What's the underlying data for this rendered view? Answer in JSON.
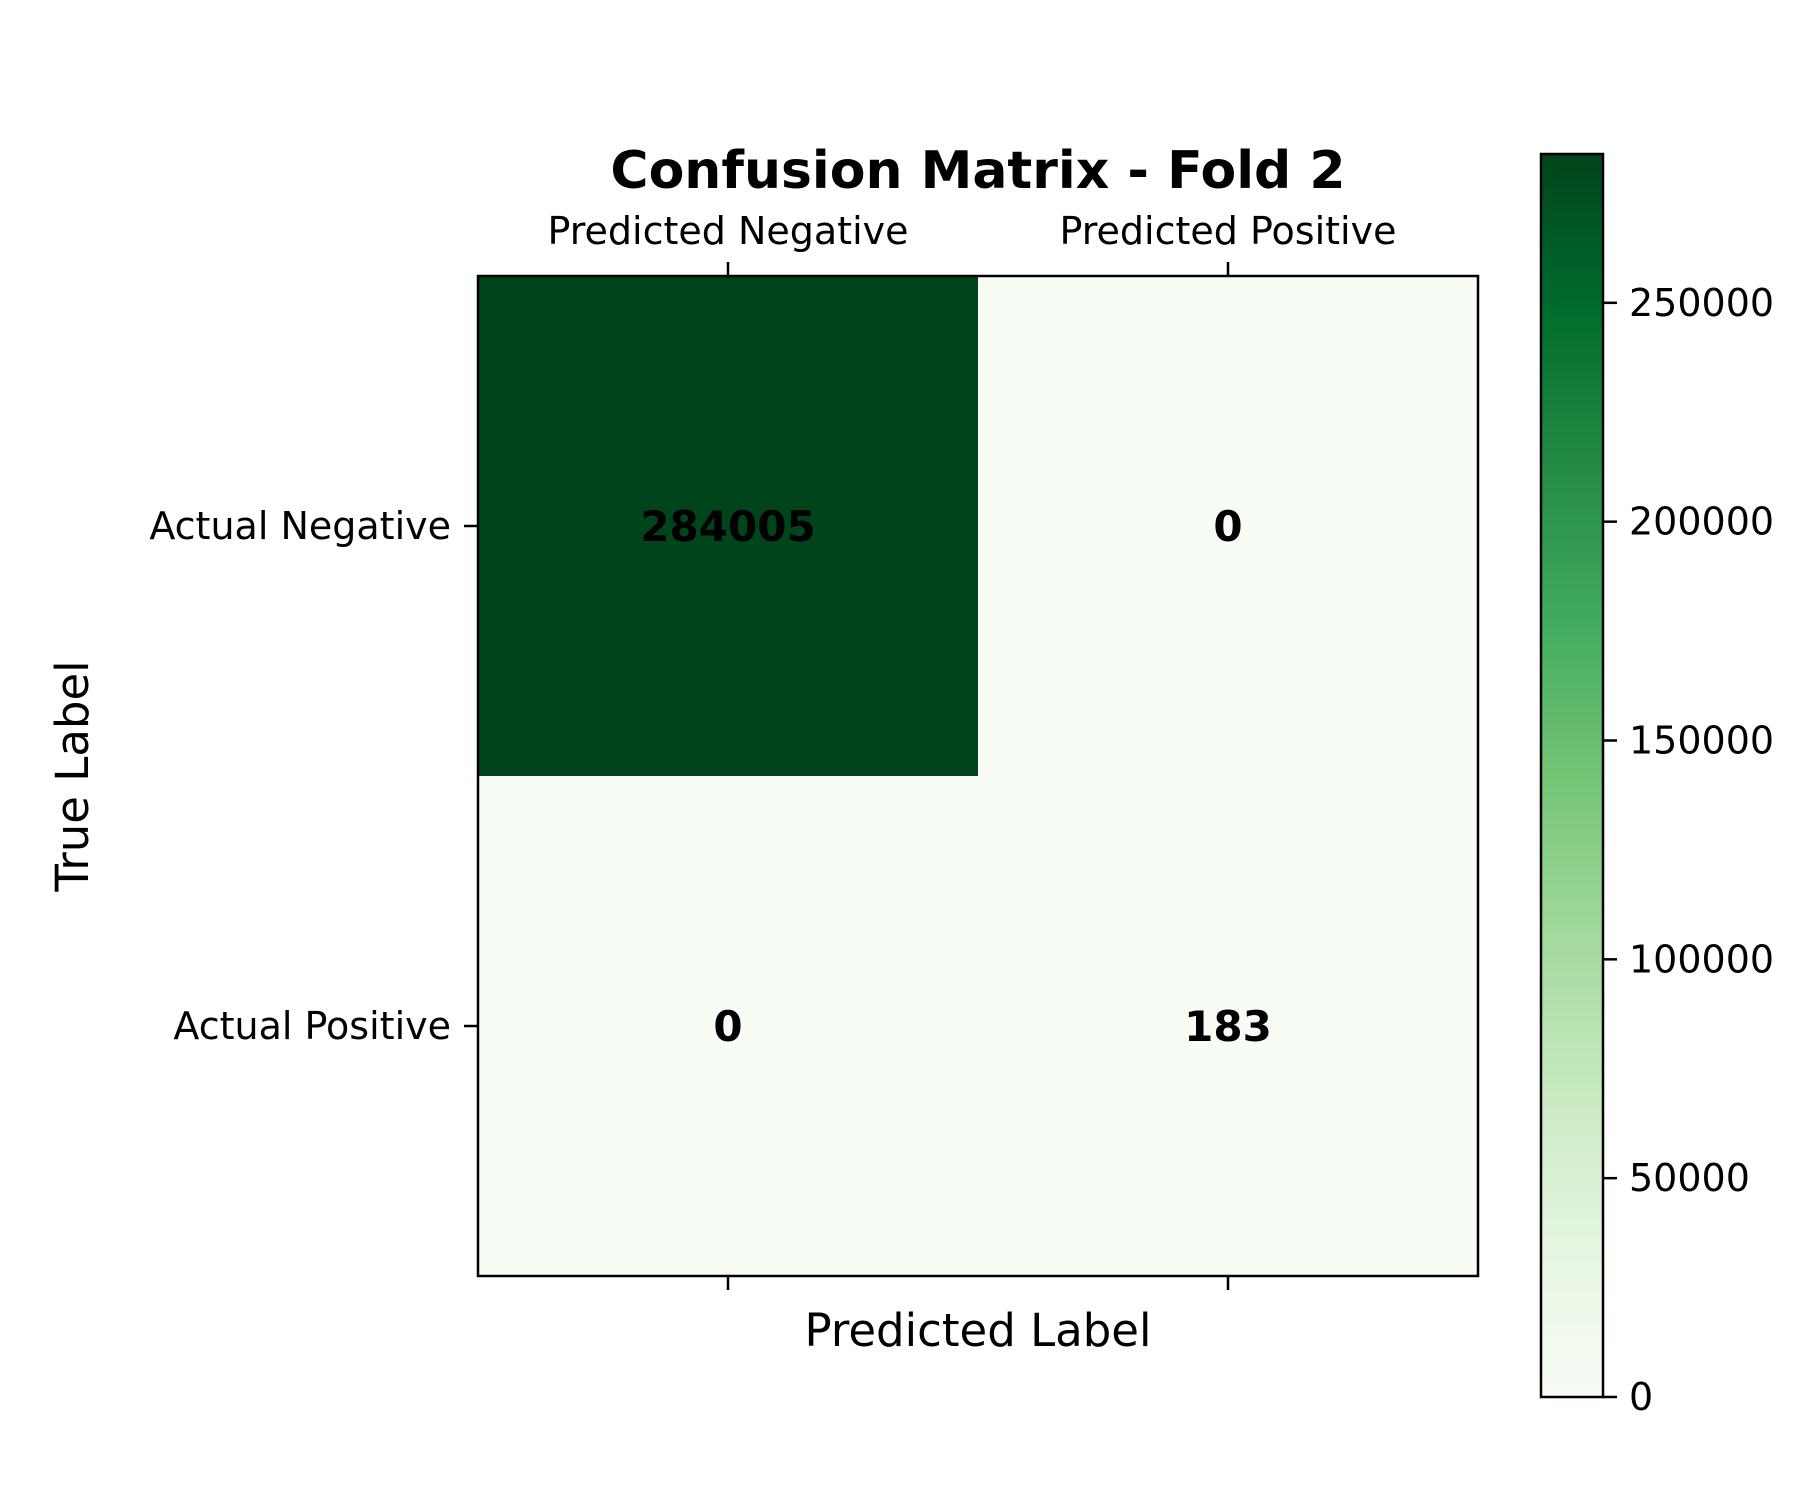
{
  "chart_data": {
    "type": "heatmap",
    "title": "Confusion Matrix - Fold 2",
    "xlabel": "Predicted Label",
    "ylabel": "True Label",
    "x_categories": [
      "Predicted Negative",
      "Predicted Positive"
    ],
    "y_categories": [
      "Actual Negative",
      "Actual Positive"
    ],
    "values": [
      [
        284005,
        0
      ],
      [
        0,
        183
      ]
    ],
    "cell_labels": [
      [
        "284005",
        "0"
      ],
      [
        "0",
        "183"
      ]
    ],
    "x_axis_position": "top",
    "colormap": "Greens",
    "colorbar": {
      "range": [
        0,
        284005
      ],
      "ticks": [
        0,
        50000,
        100000,
        150000,
        200000,
        250000
      ],
      "tick_labels": [
        "0",
        "50000",
        "100000",
        "150000",
        "200000",
        "250000"
      ]
    },
    "colors": {
      "low": "#f7fcf5",
      "high": "#00441b",
      "text": "#000000"
    }
  }
}
